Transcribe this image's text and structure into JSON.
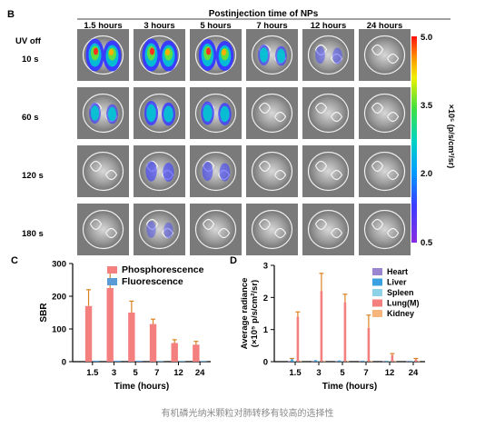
{
  "panel_b": {
    "letter": "B",
    "header": "Postinjection time of NPs",
    "columns": [
      "1.5 hours",
      "3 hours",
      "5 hours",
      "7 hours",
      "12 hours",
      "24 hours"
    ],
    "uv_label": "UV off",
    "rows": [
      "10 s",
      "60 s",
      "120 s",
      "180 s"
    ],
    "colorbar": {
      "max": "5.0",
      "t1": "3.5",
      "t2": "2.0",
      "min": "0.5",
      "unit": "×10⁵ (p/s/cm²/sr)"
    }
  },
  "panel_c": {
    "letter": "C"
  },
  "panel_d": {
    "letter": "D"
  },
  "caption": "有机磷光纳米颗粒对肺转移有较高的选择性",
  "chart_data": [
    {
      "type": "bar",
      "categories": [
        "1.5",
        "3",
        "5",
        "7",
        "12",
        "24"
      ],
      "series": [
        {
          "name": "Phosphorescence",
          "color": "#f47f7f",
          "values": [
            170,
            225,
            150,
            115,
            57,
            52
          ],
          "errors": [
            50,
            55,
            35,
            15,
            10,
            10
          ]
        },
        {
          "name": "Fluorescence",
          "color": "#5b9bd5",
          "values": [
            3,
            3,
            3,
            2,
            2,
            2
          ],
          "errors": [
            0,
            0,
            0,
            0,
            0,
            0
          ]
        }
      ],
      "xlabel": "Time (hours)",
      "ylabel": "SBR",
      "ylim": [
        0,
        300
      ],
      "yticks": [
        "0",
        "100",
        "200",
        "300"
      ],
      "legend": "top-right"
    },
    {
      "type": "bar",
      "categories": [
        "1.5",
        "3",
        "5",
        "7",
        "12",
        "24"
      ],
      "series": [
        {
          "name": "Heart",
          "color": "#9a85d0",
          "values": [
            0.02,
            0.02,
            0.02,
            0.02,
            0.02,
            0.02
          ],
          "errors": [
            0,
            0,
            0,
            0,
            0,
            0
          ]
        },
        {
          "name": "Liver",
          "color": "#3aa0e0",
          "values": [
            0.08,
            0.05,
            0.04,
            0.03,
            0.02,
            0.02
          ],
          "errors": [
            0.02,
            0,
            0,
            0,
            0,
            0
          ]
        },
        {
          "name": "Spleen",
          "color": "#8fd1e6",
          "values": [
            0.03,
            0.02,
            0.02,
            0.02,
            0.02,
            0.02
          ],
          "errors": [
            0,
            0,
            0,
            0,
            0,
            0
          ]
        },
        {
          "name": "Lung(M)",
          "color": "#f47f7f",
          "values": [
            1.4,
            2.2,
            1.85,
            1.05,
            0.2,
            0.07
          ],
          "errors": [
            0.15,
            0.55,
            0.25,
            0.4,
            0.05,
            0.03
          ]
        },
        {
          "name": "Kidney",
          "color": "#f5b57b",
          "values": [
            0.03,
            0.02,
            0.02,
            0.02,
            0.02,
            0.02
          ],
          "errors": [
            0,
            0,
            0,
            0,
            0,
            0
          ]
        }
      ],
      "xlabel": "Time (hours)",
      "ylabel": "Average radiance",
      "ylabel2": "(×10⁵ p/s/cm²/sr)",
      "ylim": [
        0,
        3
      ],
      "yticks": [
        "0",
        "1",
        "2",
        "3"
      ],
      "legend": "top-right"
    }
  ]
}
